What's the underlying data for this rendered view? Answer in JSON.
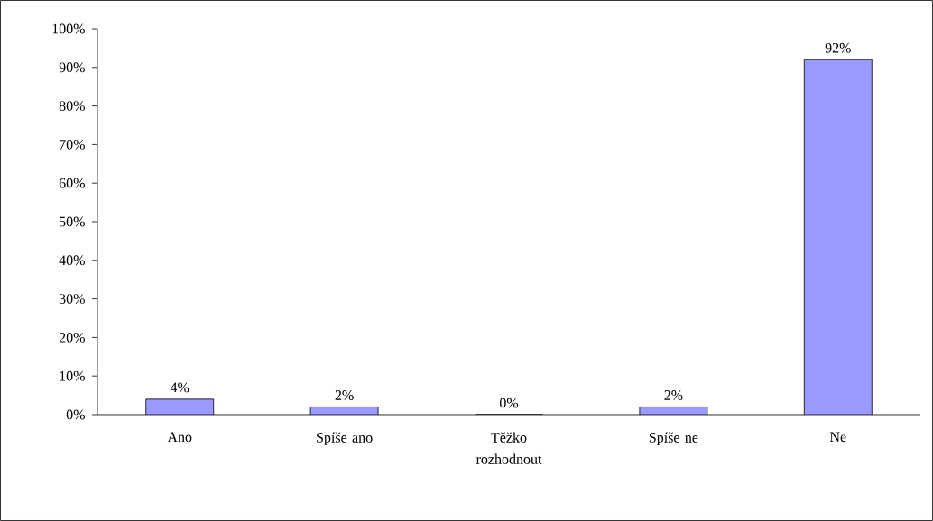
{
  "chart_data": {
    "type": "bar",
    "categories": [
      "Ano",
      "Spíše ano",
      "Těžko rozhodnout",
      "Spíše ne",
      "Ne"
    ],
    "values": [
      4,
      2,
      0,
      2,
      92
    ],
    "color": "#9999ff",
    "value_labels": [
      "4%",
      "2%",
      "0%",
      "2%",
      "92%"
    ],
    "ylim": [
      0,
      100
    ],
    "yticks": [
      {
        "value": 0,
        "label": "0%"
      },
      {
        "value": 10,
        "label": "10%"
      },
      {
        "value": 20,
        "label": "20%"
      },
      {
        "value": 30,
        "label": "30%"
      },
      {
        "value": 40,
        "label": "40%"
      },
      {
        "value": 50,
        "label": "50%"
      },
      {
        "value": 60,
        "label": "60%"
      },
      {
        "value": 70,
        "label": "70%"
      },
      {
        "value": 80,
        "label": "80%"
      },
      {
        "value": 90,
        "label": "90%"
      },
      {
        "value": 100,
        "label": "100%"
      }
    ]
  }
}
